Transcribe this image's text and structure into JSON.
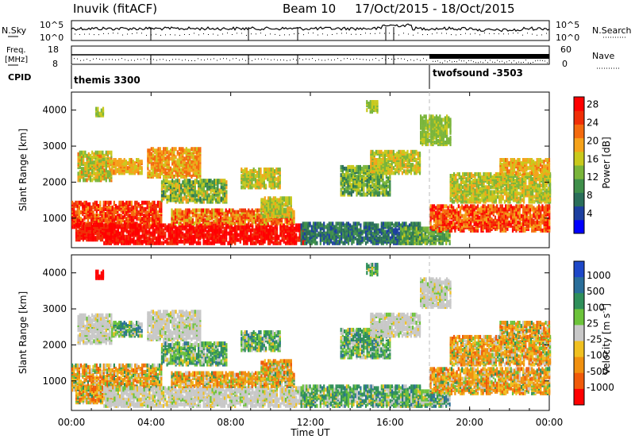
{
  "header": {
    "station": "Inuvik (fitACF)",
    "beam": "Beam 10",
    "date_range": "17/Oct/2015 - 18/Oct/2015"
  },
  "status_panels": {
    "nsky_label": "N.Sky",
    "nsearch_label": "N.Search",
    "freq_label_line1": "Freq.",
    "freq_label_line2": "[MHz]",
    "cpid_label": "CPID",
    "nave_label": "Nave",
    "nsky_ticks": [
      "10^5",
      "10^0"
    ],
    "nsearch_ticks": [
      "10^5",
      "10^0"
    ],
    "freq_ticks": [
      "18",
      "8"
    ],
    "nave_ticks": [
      "60",
      "0"
    ],
    "cpid_entries": [
      {
        "name": "themis 3300",
        "start": "00:00"
      },
      {
        "name": "twofsound -3503",
        "start": "18:00"
      }
    ]
  },
  "chart_data": [
    {
      "type": "heatmap",
      "title": "",
      "xlabel": "",
      "ylabel": "Slant Range [km]",
      "x_range_hours": [
        0,
        24
      ],
      "ylim": [
        180,
        4500
      ],
      "yticks": [
        1000,
        2000,
        3000,
        4000
      ],
      "colorbar_label": "Power [dB]",
      "colorbar_ticks": [
        4,
        8,
        12,
        16,
        20,
        24,
        28
      ],
      "colorbar_range": [
        0,
        30
      ],
      "colors": [
        "#0000ff",
        "#1c3fa0",
        "#2a6e5a",
        "#3f8f4a",
        "#7ab53a",
        "#c9c91c",
        "#f5a21a",
        "#f46a0e",
        "#f02e06",
        "#ff0000"
      ]
    },
    {
      "type": "heatmap",
      "title": "",
      "xlabel": "Time UT",
      "ylabel": "Slant Range [km]",
      "x_range_hours": [
        0,
        24
      ],
      "xticks": [
        "00:00",
        "04:00",
        "08:00",
        "12:00",
        "16:00",
        "20:00",
        "00:00"
      ],
      "ylim": [
        180,
        4500
      ],
      "yticks": [
        1000,
        2000,
        3000,
        4000
      ],
      "colorbar_label": "Velocity [m s-1]",
      "colorbar_ticks": [
        1000,
        500,
        100,
        25,
        -25,
        -100,
        -500,
        -1000
      ],
      "colors": [
        "#1e48c8",
        "#2a6e9a",
        "#2f8f5a",
        "#6cc33a",
        "#c8c8c8",
        "#f0c020",
        "#f0900f",
        "#f05a0a",
        "#ff0000"
      ]
    }
  ]
}
